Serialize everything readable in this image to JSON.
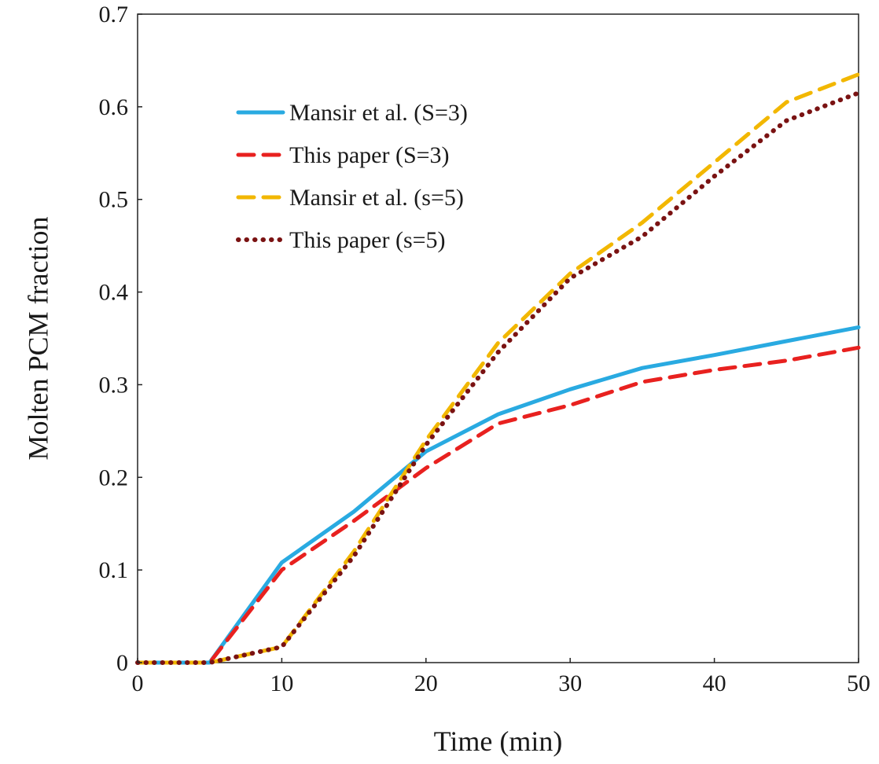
{
  "chart_data": {
    "type": "line",
    "title": "",
    "xlabel": "Time (min)",
    "ylabel": "Molten PCM fraction",
    "xlim": [
      0,
      50
    ],
    "ylim": [
      0,
      0.7
    ],
    "x_ticks": [
      "0",
      "10",
      "20",
      "30",
      "40",
      "50"
    ],
    "y_ticks": [
      "0",
      "0.1",
      "0.2",
      "0.3",
      "0.4",
      "0.5",
      "0.6",
      "0.7"
    ],
    "grid": false,
    "legend_position": "top-left",
    "series": [
      {
        "name": "Mansir et al. (S=3)",
        "color": "#29aae1",
        "style": "solid",
        "x": [
          0,
          5,
          10,
          15,
          20,
          25,
          30,
          35,
          40,
          45,
          50
        ],
        "y": [
          0,
          0,
          0.108,
          0.163,
          0.228,
          0.268,
          0.295,
          0.318,
          0.332,
          0.347,
          0.362
        ]
      },
      {
        "name": "This paper (S=3)",
        "color": "#e8211f",
        "style": "dashed",
        "x": [
          0,
          5,
          10,
          15,
          20,
          25,
          30,
          35,
          40,
          45,
          50
        ],
        "y": [
          0,
          0,
          0.1,
          0.153,
          0.21,
          0.258,
          0.278,
          0.303,
          0.316,
          0.326,
          0.34
        ]
      },
      {
        "name": "Mansir et al. (s=5)",
        "color": "#f2b700",
        "style": "dashed",
        "x": [
          0,
          5,
          10,
          15,
          20,
          25,
          30,
          35,
          40,
          45,
          50
        ],
        "y": [
          0,
          0,
          0.017,
          0.12,
          0.24,
          0.345,
          0.42,
          0.475,
          0.54,
          0.605,
          0.635
        ]
      },
      {
        "name": "This paper (s=5)",
        "color": "#7a1212",
        "style": "dotted",
        "x": [
          0,
          5,
          10,
          15,
          20,
          25,
          30,
          35,
          40,
          45,
          50
        ],
        "y": [
          0,
          0,
          0.017,
          0.115,
          0.235,
          0.335,
          0.415,
          0.46,
          0.525,
          0.585,
          0.615
        ]
      }
    ]
  }
}
